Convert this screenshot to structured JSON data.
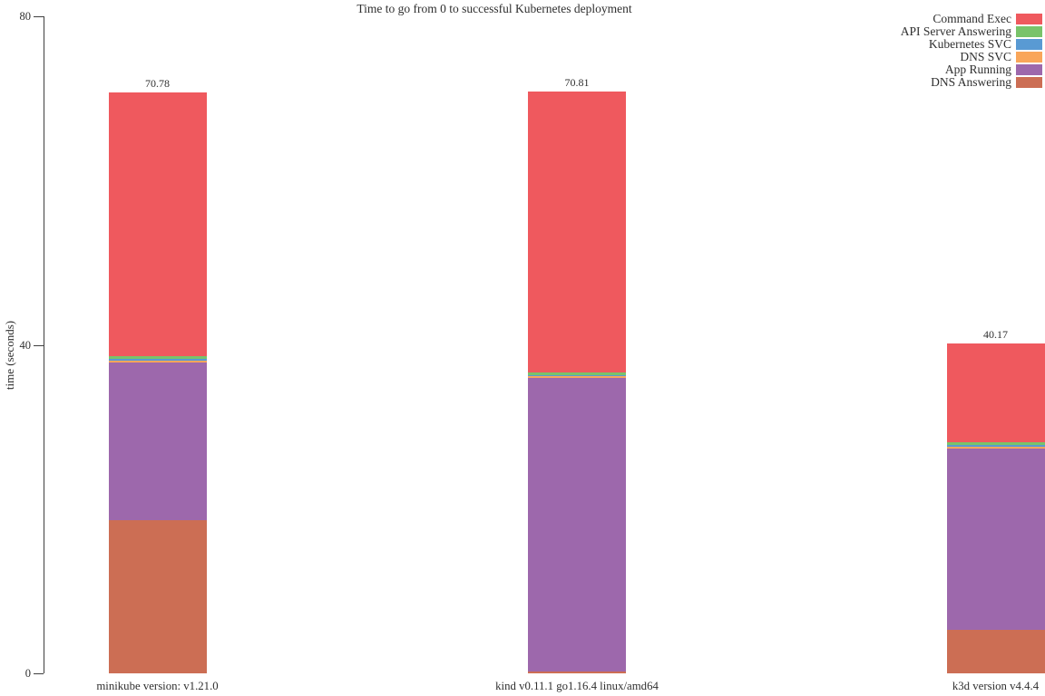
{
  "chart_data": {
    "type": "bar",
    "stacked": true,
    "title": "Time to go from 0 to successful Kubernetes deployment",
    "xlabel": "",
    "ylabel": "time (seconds)",
    "ylim": [
      0,
      80
    ],
    "yticks": [
      0,
      40,
      80
    ],
    "grid": false,
    "categories": [
      "minikube version: v1.21.0",
      "kind v0.11.1 go1.16.4 linux/amd64",
      "k3d version v4.4.4"
    ],
    "totals": [
      "70.78",
      "70.81",
      "40.17"
    ],
    "series": [
      {
        "name": "DNS Answering",
        "color": "#cc6e54",
        "values": [
          18.65,
          0.2,
          5.3
        ]
      },
      {
        "name": "App Running",
        "color": "#9d68ac",
        "values": [
          19.15,
          35.73,
          22.08
        ]
      },
      {
        "name": "DNS SVC",
        "color": "#f9a65a",
        "values": [
          0.28,
          0.22,
          0.22
        ]
      },
      {
        "name": "Kubernetes SVC",
        "color": "#599ad3",
        "values": [
          0.17,
          0.17,
          0.22
        ]
      },
      {
        "name": "API Server Answering",
        "color": "#79c36a",
        "values": [
          0.39,
          0.33,
          0.33
        ]
      },
      {
        "name": "Command Exec",
        "color": "#ef595e",
        "values": [
          32.14,
          34.16,
          12.02
        ]
      }
    ],
    "legend": {
      "position": "top-right",
      "entries": [
        "Command Exec",
        "API Server Answering",
        "Kubernetes SVC",
        "DNS SVC",
        "App Running",
        "DNS Answering"
      ]
    }
  }
}
